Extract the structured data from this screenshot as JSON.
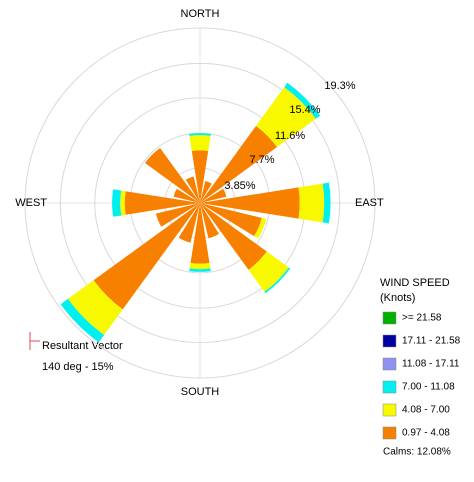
{
  "chart_data": {
    "type": "windrose",
    "categories": [
      "NORTH",
      null,
      null,
      null,
      "EAST",
      null,
      null,
      null,
      "SOUTH",
      null,
      null,
      null,
      "WEST",
      null,
      null,
      null
    ],
    "rlim": [
      0,
      19.3
    ],
    "rticks": [
      {
        "value": 3.85,
        "label": "3.85%"
      },
      {
        "value": 7.7,
        "label": "7.7%"
      },
      {
        "value": 11.6,
        "label": "11.6%"
      },
      {
        "value": 15.4,
        "label": "15.4%"
      },
      {
        "value": 19.3,
        "label": "19.3%"
      }
    ],
    "legend_title": [
      "WIND SPEED",
      "(Knots)"
    ],
    "series": [
      {
        "name": ">= 21.58",
        "color": "#00b000",
        "values": [
          0,
          0,
          0,
          0,
          0,
          0,
          0,
          0,
          0,
          0,
          0,
          0,
          0,
          0,
          0,
          0
        ]
      },
      {
        "name": "17.11 - 21.58",
        "color": "#0000a0",
        "values": [
          0,
          0,
          0,
          0,
          0,
          0,
          0,
          0,
          0,
          0,
          0,
          0,
          0,
          0,
          0,
          0
        ]
      },
      {
        "name": "11.08 - 17.11",
        "color": "#9090f0",
        "values": [
          0,
          0,
          0,
          0,
          0,
          0,
          0,
          0,
          0,
          0,
          0,
          0,
          0,
          0,
          0,
          0
        ]
      },
      {
        "name": "7.00 - 11.08",
        "color": "#00f0f0",
        "values": [
          0.2,
          0,
          0.6,
          0,
          0.7,
          0,
          0.2,
          0,
          0.3,
          0,
          1.0,
          0,
          0.9,
          0,
          0,
          0
        ]
      },
      {
        "name": "4.08 - 7.00",
        "color": "#f8f800",
        "values": [
          1.7,
          0,
          5.3,
          0,
          2.7,
          0.5,
          3.0,
          0,
          0.6,
          0,
          3.5,
          0,
          0.5,
          0,
          0,
          0
        ]
      },
      {
        "name": "0.97 - 4.08",
        "color": "#f88000",
        "values": [
          5.8,
          2.5,
          10.5,
          3.0,
          11.0,
          7.0,
          9.1,
          4.0,
          6.7,
          4.5,
          14.5,
          5.0,
          8.3,
          3.0,
          7.5,
          3.0
        ]
      }
    ],
    "calms": "Calms: 12.08%",
    "annotations": [
      "Resultant Vector",
      "140 deg - 15%"
    ]
  }
}
